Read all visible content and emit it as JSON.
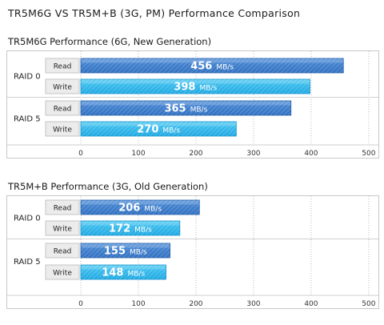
{
  "page_title": "TR5M6G VS TR5M+B (3G, PM) Performance Comparison",
  "colors": {
    "read_bar": "#2f6fc0",
    "read_bar_light": "#4a8ad6",
    "write_bar": "#1ea8e2",
    "write_bar_light": "#46c6f1",
    "grid": "#b9b9b9",
    "label_box": "#ececec"
  },
  "chart_data": [
    {
      "type": "bar",
      "orientation": "horizontal",
      "title": "TR5M6G Performance (6G, New Generation)",
      "groups": [
        "RAID 0",
        "RAID 5"
      ],
      "series_labels": [
        "Read",
        "Write"
      ],
      "values": [
        [
          456,
          398
        ],
        [
          365,
          270
        ]
      ],
      "unit": "MB/s",
      "xlim": [
        0,
        500
      ],
      "xticks": [
        0,
        100,
        200,
        300,
        400,
        500
      ],
      "grid": true
    },
    {
      "type": "bar",
      "orientation": "horizontal",
      "title": "TR5M+B Performance (3G, Old Generation)",
      "groups": [
        "RAID 0",
        "RAID 5"
      ],
      "series_labels": [
        "Read",
        "Write"
      ],
      "values": [
        [
          206,
          172
        ],
        [
          155,
          148
        ]
      ],
      "unit": "MB/s",
      "xlim": [
        0,
        500
      ],
      "xticks": [
        0,
        100,
        200,
        300,
        400,
        500
      ],
      "grid": true
    }
  ]
}
